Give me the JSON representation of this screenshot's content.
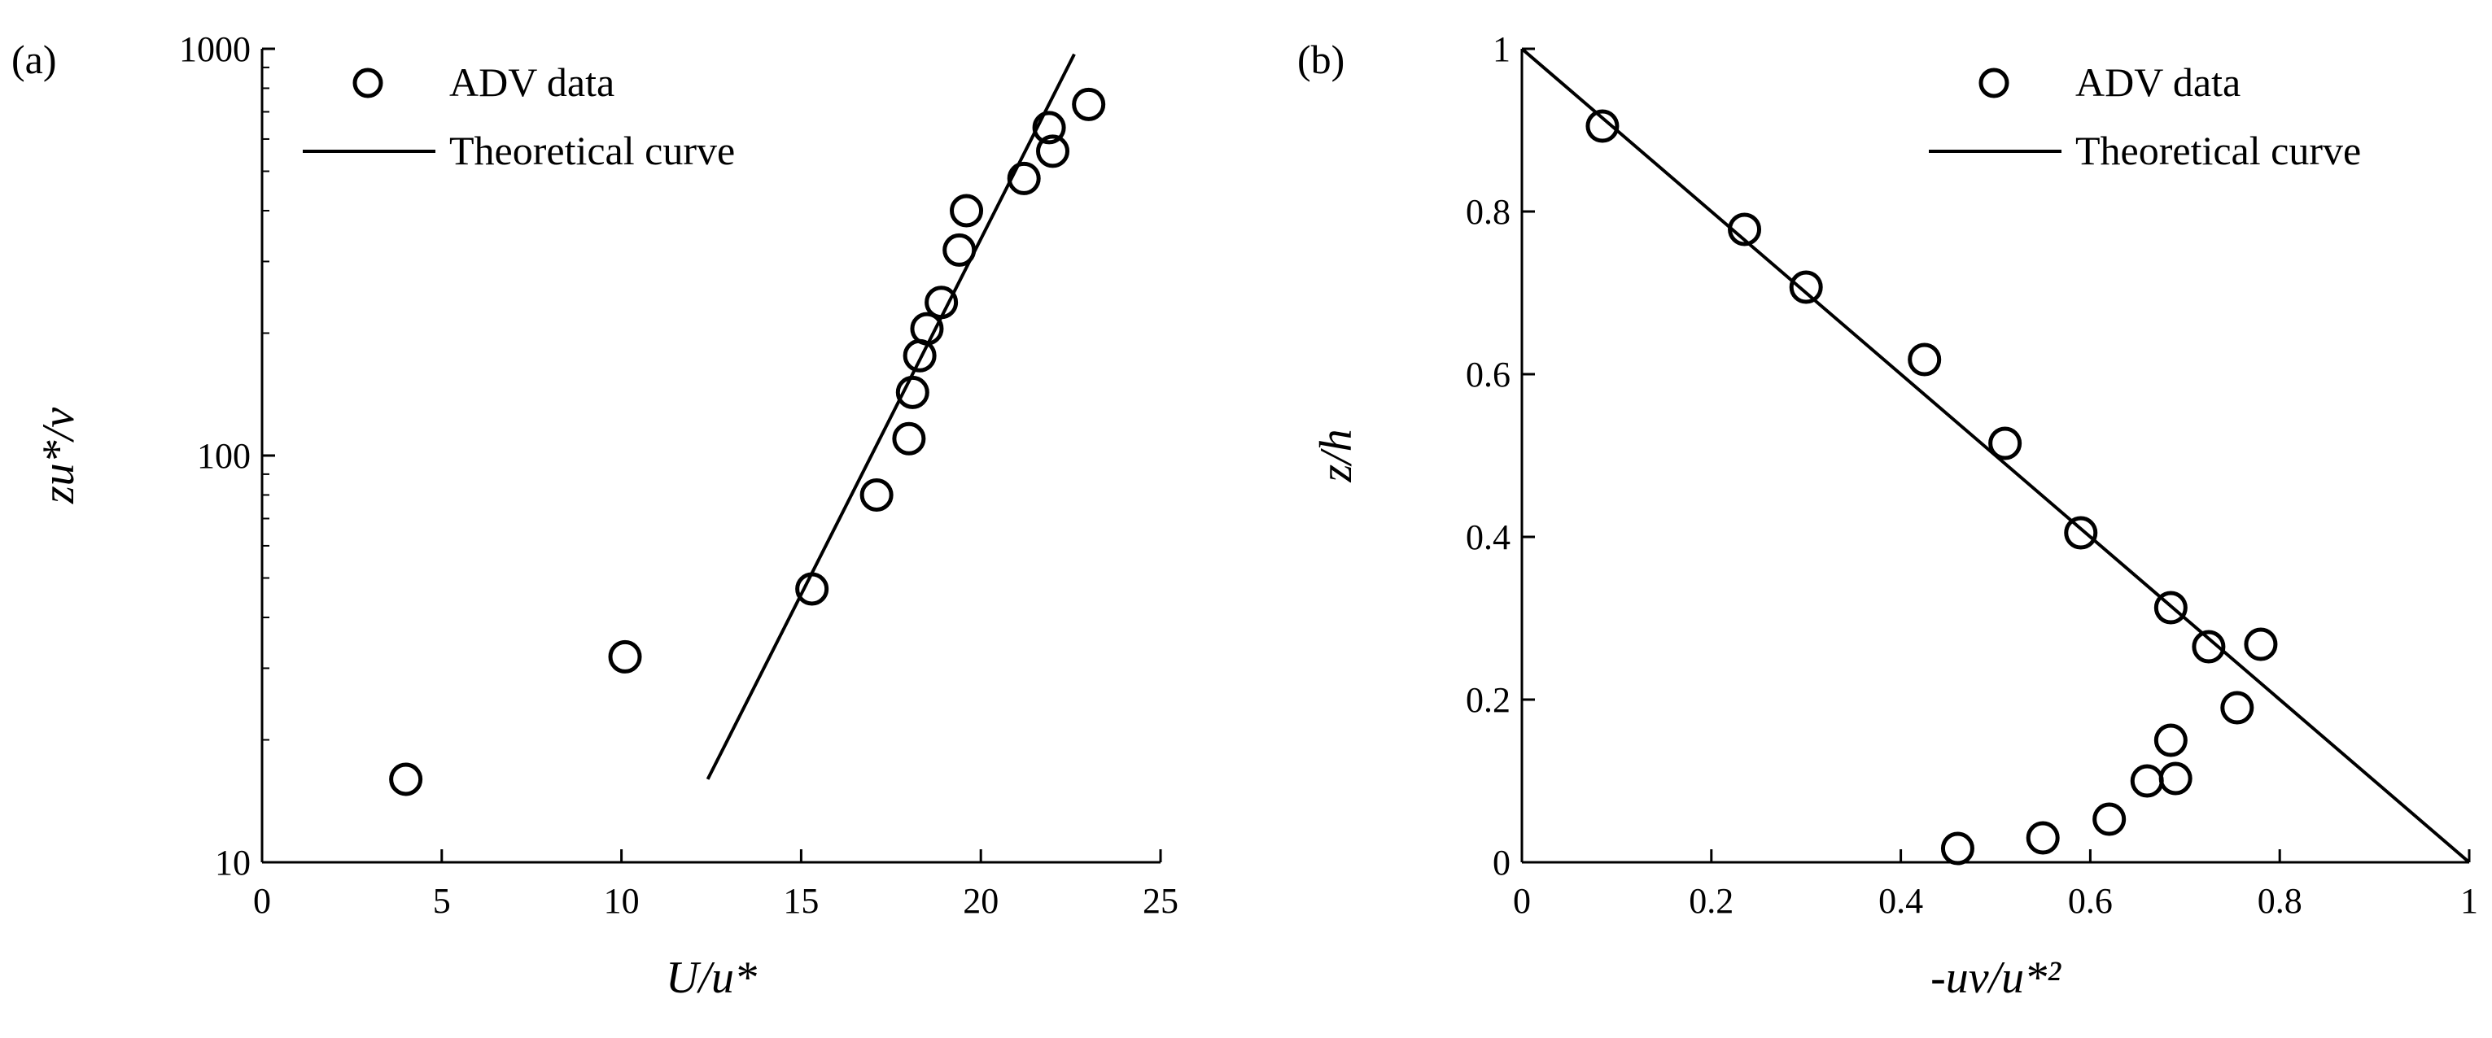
{
  "chart_data": [
    {
      "panel_label": "(a)",
      "type": "scatter",
      "xlabel": "U/u*",
      "ylabel": "zu*/ν",
      "xlim": [
        0,
        25
      ],
      "ylim": [
        10,
        1000
      ],
      "yscale": "log",
      "xticks": [
        0,
        5,
        10,
        15,
        20,
        25
      ],
      "yticks": [
        10,
        100,
        1000
      ],
      "grid": false,
      "legend_position": "top-left",
      "series": [
        {
          "name": "ADV data",
          "kind": "markers",
          "marker": "open-circle",
          "points": [
            {
              "x": 4.0,
              "y": 16
            },
            {
              "x": 10.1,
              "y": 32
            },
            {
              "x": 15.3,
              "y": 47
            },
            {
              "x": 17.1,
              "y": 80
            },
            {
              "x": 18.0,
              "y": 110
            },
            {
              "x": 18.1,
              "y": 143
            },
            {
              "x": 18.3,
              "y": 176
            },
            {
              "x": 18.5,
              "y": 205
            },
            {
              "x": 18.9,
              "y": 238
            },
            {
              "x": 19.4,
              "y": 320
            },
            {
              "x": 19.6,
              "y": 400
            },
            {
              "x": 21.2,
              "y": 480
            },
            {
              "x": 22.0,
              "y": 560
            },
            {
              "x": 21.9,
              "y": 640
            },
            {
              "x": 23.0,
              "y": 730
            }
          ]
        },
        {
          "name": "Theoretical curve",
          "kind": "line",
          "points": [
            {
              "x": 12.4,
              "y": 16
            },
            {
              "x": 22.6,
              "y": 970
            }
          ]
        }
      ]
    },
    {
      "panel_label": "(b)",
      "type": "scatter",
      "xlabel": "-uv/u*²",
      "ylabel": "z/h",
      "xlim": [
        0,
        1
      ],
      "ylim": [
        0,
        1
      ],
      "yscale": "linear",
      "xticks": [
        0,
        0.2,
        0.4,
        0.6,
        0.8,
        1
      ],
      "yticks": [
        0,
        0.2,
        0.4,
        0.6,
        0.8,
        1
      ],
      "grid": false,
      "legend_position": "top-right",
      "series": [
        {
          "name": "ADV data",
          "kind": "markers",
          "marker": "open-circle",
          "points": [
            {
              "x": 0.085,
              "y": 0.905
            },
            {
              "x": 0.235,
              "y": 0.778
            },
            {
              "x": 0.3,
              "y": 0.707
            },
            {
              "x": 0.425,
              "y": 0.618
            },
            {
              "x": 0.51,
              "y": 0.515
            },
            {
              "x": 0.59,
              "y": 0.405
            },
            {
              "x": 0.685,
              "y": 0.313
            },
            {
              "x": 0.725,
              "y": 0.265
            },
            {
              "x": 0.78,
              "y": 0.268
            },
            {
              "x": 0.755,
              "y": 0.19
            },
            {
              "x": 0.685,
              "y": 0.15
            },
            {
              "x": 0.66,
              "y": 0.1
            },
            {
              "x": 0.69,
              "y": 0.103
            },
            {
              "x": 0.62,
              "y": 0.053
            },
            {
              "x": 0.55,
              "y": 0.03
            },
            {
              "x": 0.46,
              "y": 0.017
            }
          ]
        },
        {
          "name": "Theoretical curve",
          "kind": "line",
          "points": [
            {
              "x": 0,
              "y": 1
            },
            {
              "x": 1,
              "y": 0
            }
          ]
        }
      ]
    }
  ]
}
